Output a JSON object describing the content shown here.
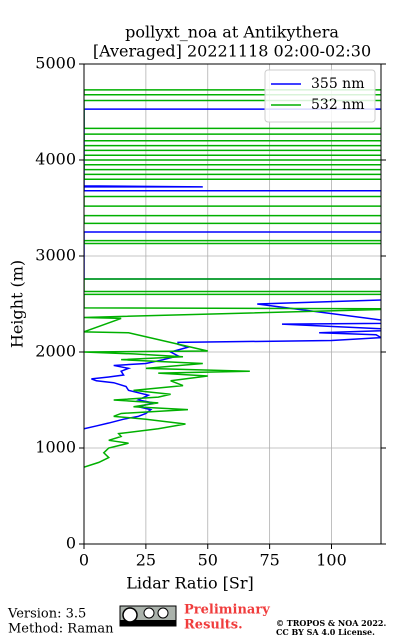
{
  "chart_data": {
    "type": "line",
    "title": "pollyxt_noa at Antikythera",
    "subtitle": "[Averaged] 20221118 02:00-02:30",
    "xlabel": "Lidar Ratio [Sr]",
    "ylabel": "Height (m)",
    "xlim": [
      0,
      120
    ],
    "ylim": [
      0,
      5000
    ],
    "xticks": [
      0,
      25,
      50,
      75,
      100
    ],
    "yticks": [
      0,
      1000,
      2000,
      3000,
      4000,
      5000
    ],
    "grid": true,
    "legend": "upper right",
    "series": [
      {
        "name": "355 nm",
        "color": "#0000ff",
        "heights": [
          1200,
          1230,
          1260,
          1300,
          1330,
          1360,
          1400,
          1430,
          1470,
          1500,
          1550,
          1600,
          1640,
          1680,
          1700,
          1720,
          1740,
          1760,
          1800,
          1830,
          1860,
          1880,
          1920,
          1960,
          2000,
          2050,
          2080,
          2100,
          2120,
          2150,
          2180,
          2200,
          2230,
          2290,
          2300,
          2500,
          2550,
          2600,
          2760,
          2760,
          3250,
          3250,
          3680,
          3680,
          3720,
          3720,
          3730,
          4530,
          4530
        ],
        "values": [
          0,
          5,
          10,
          16,
          22,
          25,
          27,
          22,
          28,
          22,
          26,
          18,
          17,
          12,
          5,
          3,
          10,
          16,
          15,
          18,
          12,
          25,
          32,
          38,
          35,
          42,
          38,
          38,
          100,
          120,
          118,
          95,
          130,
          80,
          130,
          70,
          130,
          130,
          130,
          0,
          0,
          130,
          130,
          0,
          0,
          48,
          0,
          0,
          130
        ]
      },
      {
        "name": "532 nm",
        "color": "#00b000",
        "heights": [
          800,
          850,
          900,
          950,
          1000,
          1050,
          1080,
          1120,
          1150,
          1200,
          1250,
          1300,
          1330,
          1360,
          1400,
          1430,
          1470,
          1500,
          1530,
          1560,
          1600,
          1650,
          1700,
          1750,
          1780,
          1800,
          1830,
          1880,
          1920,
          1950,
          1980,
          2000,
          2010,
          2200,
          2210,
          2350,
          2360,
          2450,
          2460,
          2600,
          2600,
          2630,
          2630,
          2760,
          2760,
          3130,
          3130,
          3160,
          3160,
          3340,
          3340,
          3420,
          3420,
          3520,
          3520,
          3620,
          3620,
          3800,
          3800,
          3850,
          3850,
          3900,
          3900,
          3950,
          3950,
          4000,
          4000,
          4050,
          4050,
          4100,
          4100,
          4150,
          4150,
          4200,
          4200,
          4270,
          4270,
          4330,
          4330,
          4620,
          4620,
          4680,
          4680,
          4730,
          4730
        ],
        "values": [
          0,
          6,
          10,
          8,
          10,
          18,
          10,
          15,
          14,
          30,
          41,
          25,
          12,
          15,
          42,
          20,
          30,
          12,
          30,
          35,
          20,
          40,
          35,
          50,
          30,
          67,
          25,
          48,
          15,
          40,
          20,
          0,
          50,
          18,
          0,
          15,
          0,
          130,
          0,
          0,
          130,
          130,
          0,
          0,
          130,
          130,
          0,
          0,
          130,
          130,
          0,
          0,
          130,
          130,
          0,
          0,
          130,
          130,
          0,
          0,
          130,
          130,
          0,
          0,
          130,
          130,
          0,
          0,
          130,
          130,
          0,
          0,
          130,
          130,
          0,
          0,
          130,
          130,
          0,
          0,
          130,
          130,
          0,
          0,
          130
        ]
      }
    ]
  },
  "footer": {
    "version": "Version: 3.5",
    "method": "Method: Raman",
    "preliminary_1": "Preliminary",
    "preliminary_2": "Results.",
    "copyright_1": "© TROPOS & NOA 2022.",
    "copyright_2": "CC BY SA 4.0 License."
  }
}
